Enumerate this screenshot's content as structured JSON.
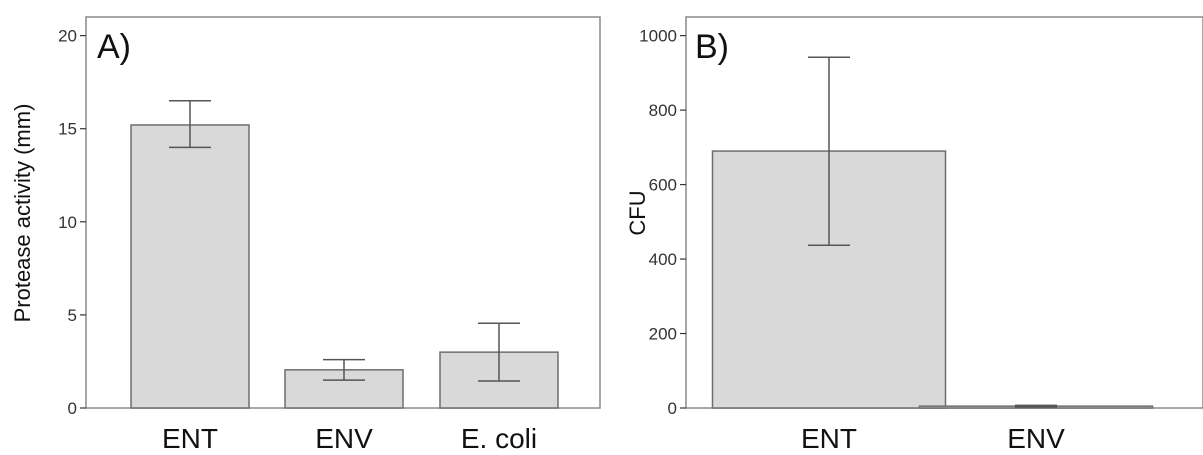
{
  "chart_data": [
    {
      "type": "bar",
      "panel_label": "A)",
      "ylabel": "Protease activity (mm)",
      "xlabel": "",
      "categories": [
        "ENT",
        "ENV",
        "E. coli"
      ],
      "values": [
        15.2,
        2.05,
        3.0
      ],
      "error_low": [
        14.0,
        1.5,
        1.45
      ],
      "error_high": [
        16.5,
        2.6,
        4.55
      ],
      "ylim": [
        0,
        21
      ],
      "yticks": [
        0,
        5,
        10,
        15,
        20
      ],
      "grid": false,
      "bar_color": "#d9d9d9"
    },
    {
      "type": "bar",
      "panel_label": "B)",
      "ylabel": "CFU",
      "xlabel": "",
      "categories": [
        "ENT",
        "ENV"
      ],
      "values": [
        690,
        5
      ],
      "error_low": [
        437,
        3
      ],
      "error_high": [
        942,
        7
      ],
      "ylim": [
        0,
        1050
      ],
      "yticks": [
        0,
        200,
        400,
        600,
        800,
        1000
      ],
      "grid": false,
      "bar_color": "#d9d9d9"
    }
  ]
}
